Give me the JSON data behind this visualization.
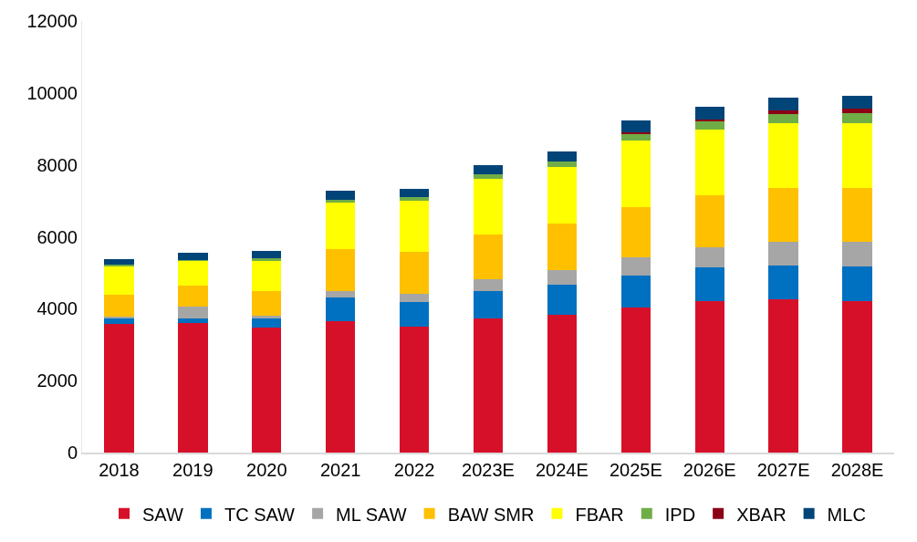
{
  "chart_data": {
    "type": "bar",
    "stacked": true,
    "categories": [
      "2018",
      "2019",
      "2020",
      "2021",
      "2022",
      "2023E",
      "2024E",
      "2025E",
      "2026E",
      "2027E",
      "2028E"
    ],
    "series": [
      {
        "name": "SAW",
        "color": "#d7102a",
        "values": [
          3580,
          3600,
          3480,
          3660,
          3500,
          3730,
          3840,
          4040,
          4220,
          4270,
          4220
        ]
      },
      {
        "name": "TC SAW",
        "color": "#0070c0",
        "values": [
          170,
          140,
          240,
          650,
          690,
          770,
          840,
          890,
          920,
          930,
          950
        ]
      },
      {
        "name": "ML SAW",
        "color": "#a6a6a6",
        "values": [
          40,
          330,
          80,
          180,
          230,
          320,
          400,
          500,
          580,
          670,
          700
        ]
      },
      {
        "name": "BAW SMR",
        "color": "#ffc000",
        "values": [
          590,
          570,
          700,
          1160,
          1170,
          1240,
          1300,
          1390,
          1440,
          1490,
          1490
        ]
      },
      {
        "name": "FBAR",
        "color": "#ffff00",
        "values": [
          820,
          700,
          840,
          1300,
          1400,
          1550,
          1570,
          1850,
          1820,
          1790,
          1800
        ]
      },
      {
        "name": "IPD",
        "color": "#70ad47",
        "values": [
          20,
          20,
          60,
          80,
          120,
          140,
          150,
          200,
          230,
          270,
          290
        ]
      },
      {
        "name": "XBAR",
        "color": "#8b0016",
        "values": [
          0,
          0,
          0,
          0,
          0,
          0,
          0,
          40,
          60,
          90,
          110
        ]
      },
      {
        "name": "MLC",
        "color": "#004478",
        "values": [
          170,
          190,
          210,
          250,
          220,
          240,
          270,
          320,
          340,
          360,
          370
        ]
      }
    ],
    "ylim": [
      0,
      12000
    ],
    "yticks": [
      0,
      2000,
      4000,
      6000,
      8000,
      10000,
      12000
    ],
    "legend": "bottom"
  }
}
